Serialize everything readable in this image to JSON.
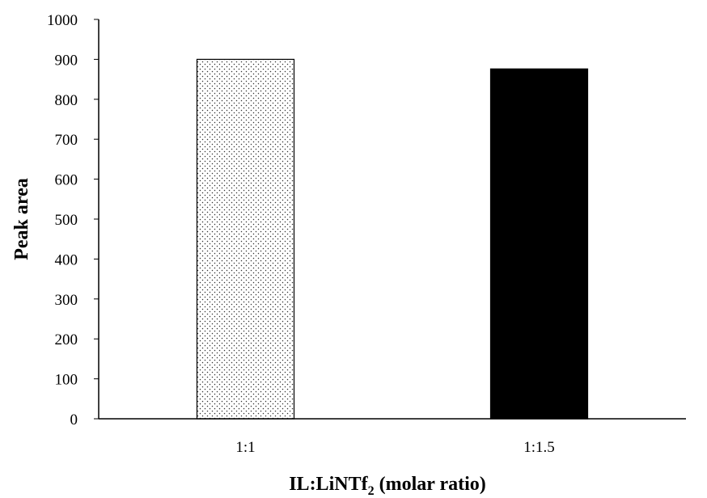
{
  "chart_data": {
    "type": "bar",
    "categories": [
      "1:1",
      "1:1.5"
    ],
    "values": [
      900,
      876
    ],
    "title": "",
    "xlabel": {
      "main": "IL:LiNTf",
      "subscript": "2",
      "suffix": " (molar ratio)"
    },
    "ylabel": "Peak area",
    "ylim": [
      0,
      1000
    ],
    "yticks": [
      0,
      100,
      200,
      300,
      400,
      500,
      600,
      700,
      800,
      900,
      1000
    ],
    "grid": false,
    "legend": "none",
    "bar_styles": [
      {
        "fill": "dotted",
        "color": "#000000",
        "background": "#ffffff"
      },
      {
        "fill": "solid",
        "color": "#000000"
      }
    ]
  }
}
